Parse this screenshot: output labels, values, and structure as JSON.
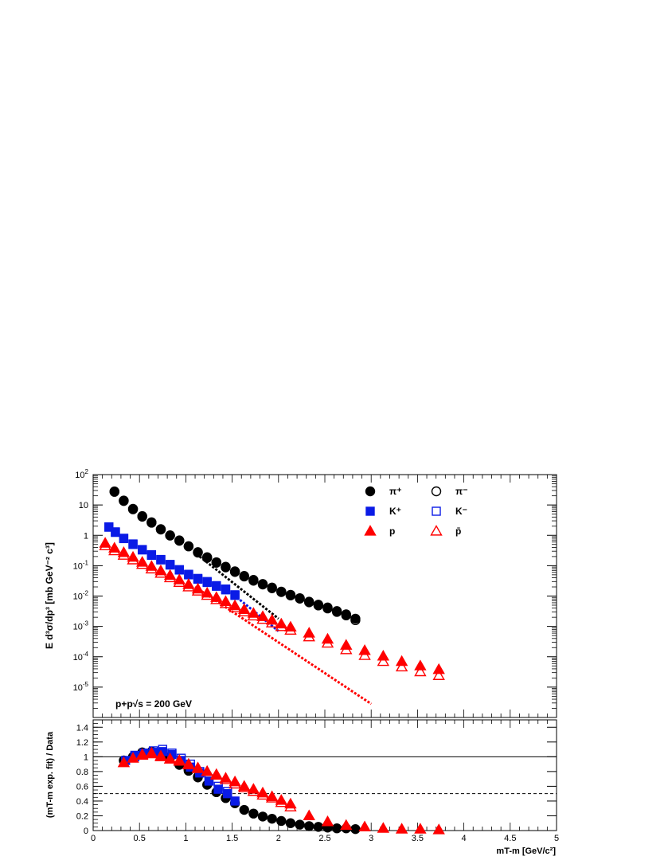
{
  "chart_data": [
    {
      "type": "scatter",
      "x_scale": "linear",
      "y_scale": "log",
      "xlim": [
        0,
        5
      ],
      "ylim": [
        1e-06,
        100
      ],
      "ylabel": "E d³σ/dp³ [mb GeV⁻² c³]",
      "yticks": [
        {
          "v": 100,
          "base": "10",
          "exp": "2"
        },
        {
          "v": 10,
          "base": "10",
          "exp": ""
        },
        {
          "v": 1,
          "base": "1",
          "exp": ""
        },
        {
          "v": 0.1,
          "base": "10",
          "exp": "-1"
        },
        {
          "v": 0.01,
          "base": "10",
          "exp": "-2"
        },
        {
          "v": 0.001,
          "base": "10",
          "exp": "-3"
        },
        {
          "v": 0.0001,
          "base": "10",
          "exp": "-4"
        },
        {
          "v": 1e-05,
          "base": "10",
          "exp": "-5"
        }
      ],
      "annotation": "p+p√s = 200 GeV",
      "legend_position": "top-right",
      "series": [
        {
          "label": "π⁺",
          "marker": "circle",
          "filled": true,
          "color": "#000000",
          "x": [
            0.23,
            0.33,
            0.43,
            0.53,
            0.63,
            0.73,
            0.83,
            0.93,
            1.03,
            1.13,
            1.23,
            1.33,
            1.43,
            1.53,
            1.63,
            1.73,
            1.83,
            1.93,
            2.03,
            2.13,
            2.23,
            2.33,
            2.43,
            2.53,
            2.63,
            2.73,
            2.83
          ],
          "y": [
            28,
            14,
            7.5,
            4.3,
            2.7,
            1.6,
            1.0,
            0.68,
            0.44,
            0.28,
            0.19,
            0.13,
            0.092,
            0.065,
            0.046,
            0.034,
            0.025,
            0.019,
            0.014,
            0.011,
            0.0085,
            0.0065,
            0.0052,
            0.0042,
            0.0032,
            0.0025,
            0.0018
          ]
        },
        {
          "label": "π⁻",
          "marker": "circle",
          "filled": false,
          "color": "#000000",
          "x": [
            0.23,
            0.33,
            0.43,
            0.53,
            0.63,
            0.73,
            0.83,
            0.93,
            1.03,
            1.13,
            1.23,
            1.33,
            1.43,
            1.53,
            1.63,
            1.73,
            1.83,
            1.93,
            2.03,
            2.13,
            2.23,
            2.33,
            2.43,
            2.53,
            2.63,
            2.73,
            2.83
          ],
          "y": [
            27,
            13.5,
            7.2,
            4.1,
            2.6,
            1.55,
            0.98,
            0.66,
            0.43,
            0.27,
            0.18,
            0.125,
            0.088,
            0.062,
            0.044,
            0.032,
            0.024,
            0.018,
            0.0135,
            0.0105,
            0.0082,
            0.0062,
            0.0049,
            0.0039,
            0.003,
            0.0023,
            0.0016
          ]
        },
        {
          "label": "K⁺",
          "marker": "square",
          "filled": true,
          "color": "#0a1be6",
          "x": [
            0.17,
            0.24,
            0.33,
            0.43,
            0.53,
            0.63,
            0.73,
            0.83,
            0.93,
            1.03,
            1.13,
            1.23,
            1.33,
            1.43,
            1.53
          ],
          "y": [
            1.9,
            1.3,
            0.8,
            0.52,
            0.34,
            0.23,
            0.16,
            0.11,
            0.074,
            0.052,
            0.038,
            0.03,
            0.022,
            0.017,
            0.011
          ]
        },
        {
          "label": "K⁻",
          "marker": "square",
          "filled": false,
          "color": "#0a1be6",
          "x": [
            0.17,
            0.24,
            0.33,
            0.43,
            0.53,
            0.63,
            0.73,
            0.83,
            0.93,
            1.03,
            1.13,
            1.23,
            1.33,
            1.43,
            1.53
          ],
          "y": [
            1.85,
            1.25,
            0.78,
            0.5,
            0.33,
            0.22,
            0.155,
            0.105,
            0.072,
            0.05,
            0.036,
            0.028,
            0.021,
            0.016,
            0.0105
          ]
        },
        {
          "label": "p",
          "marker": "triangle",
          "filled": true,
          "color": "#ff0000",
          "x": [
            0.13,
            0.23,
            0.33,
            0.43,
            0.53,
            0.63,
            0.73,
            0.83,
            0.93,
            1.03,
            1.13,
            1.23,
            1.33,
            1.43,
            1.53,
            1.63,
            1.73,
            1.83,
            1.93,
            2.03,
            2.13,
            2.33,
            2.53,
            2.73,
            2.93,
            3.13,
            3.33,
            3.53,
            3.73
          ],
          "y": [
            0.55,
            0.38,
            0.27,
            0.19,
            0.13,
            0.095,
            0.068,
            0.048,
            0.034,
            0.024,
            0.017,
            0.0125,
            0.009,
            0.0066,
            0.0048,
            0.0036,
            0.0027,
            0.0021,
            0.0016,
            0.0012,
            0.00095,
            0.0006,
            0.00038,
            0.00024,
            0.00016,
            0.000105,
            7e-05,
            5e-05,
            3.8e-05
          ]
        },
        {
          "label": "p̄",
          "marker": "triangle",
          "filled": false,
          "color": "#ff0000",
          "x": [
            0.13,
            0.23,
            0.33,
            0.43,
            0.53,
            0.63,
            0.73,
            0.83,
            0.93,
            1.03,
            1.13,
            1.23,
            1.33,
            1.43,
            1.53,
            1.63,
            1.73,
            1.83,
            1.93,
            2.03,
            2.13,
            2.33,
            2.53,
            2.73,
            2.93,
            3.13,
            3.33,
            3.53,
            3.73
          ],
          "y": [
            0.45,
            0.31,
            0.22,
            0.155,
            0.11,
            0.078,
            0.056,
            0.04,
            0.028,
            0.02,
            0.0145,
            0.0105,
            0.0076,
            0.0056,
            0.0041,
            0.003,
            0.0022,
            0.0017,
            0.0013,
            0.00098,
            0.00075,
            0.00045,
            0.00028,
            0.00017,
            0.00011,
            7e-05,
            4.6e-05,
            3.2e-05,
            2.4e-05
          ]
        }
      ],
      "fits": [
        {
          "color": "#000000",
          "x": [
            1.15,
            2.0
          ],
          "y": [
            0.2,
            0.0018
          ]
        },
        {
          "color": "#0a1be6",
          "x": [
            1.45,
            2.0
          ],
          "y": [
            0.016,
            0.0007
          ]
        },
        {
          "color": "#ff0000",
          "x": [
            1.1,
            3.0
          ],
          "y": [
            0.02,
            2.8e-06
          ]
        }
      ]
    },
    {
      "type": "scatter",
      "xlim": [
        0,
        5
      ],
      "ylim": [
        0,
        1.5
      ],
      "xlabel": "mT-m [GeV/c²]",
      "ylabel": "(mT-m exp. fit) / Data",
      "xticks": [
        "0",
        "0.5",
        "1",
        "1.5",
        "2",
        "2.5",
        "3",
        "3.5",
        "4",
        "4.5",
        "5"
      ],
      "yticks": [
        "0",
        "0.2",
        "0.4",
        "0.6",
        "0.8",
        "1",
        "1.2",
        "1.4"
      ],
      "reference_lines": [
        {
          "y": 1.0,
          "style": "solid"
        },
        {
          "y": 0.5,
          "style": "dashed"
        }
      ],
      "series": [
        {
          "label": "π⁺",
          "marker": "circle",
          "filled": true,
          "color": "#000000",
          "x": [
            0.33,
            0.43,
            0.53,
            0.63,
            0.73,
            0.83,
            0.93,
            1.03,
            1.13,
            1.23,
            1.33,
            1.43,
            1.53,
            1.63,
            1.73,
            1.83,
            1.93,
            2.03,
            2.13,
            2.23,
            2.33,
            2.43,
            2.53,
            2.63,
            2.73,
            2.83
          ],
          "y": [
            0.95,
            1.0,
            1.06,
            1.07,
            1.05,
            1.0,
            0.9,
            0.82,
            0.73,
            0.62,
            0.52,
            0.44,
            0.37,
            0.28,
            0.23,
            0.19,
            0.16,
            0.13,
            0.1,
            0.08,
            0.06,
            0.05,
            0.04,
            0.03,
            0.03,
            0.02
          ]
        },
        {
          "label": "π⁻",
          "marker": "circle",
          "filled": false,
          "color": "#000000",
          "x": [
            0.43,
            0.53,
            0.63,
            0.73,
            0.83,
            0.93,
            1.03,
            1.13
          ],
          "y": [
            1.0,
            1.05,
            1.06,
            1.04,
            0.99,
            0.89,
            0.81,
            0.72
          ]
        },
        {
          "label": "K⁺",
          "marker": "square",
          "filled": true,
          "color": "#0a1be6",
          "x": [
            0.35,
            0.45,
            0.55,
            0.65,
            0.75,
            0.85,
            0.95,
            1.05,
            1.15,
            1.25,
            1.35,
            1.45,
            1.53
          ],
          "y": [
            0.95,
            1.02,
            1.05,
            1.06,
            1.07,
            1.03,
            0.95,
            0.86,
            0.78,
            0.67,
            0.56,
            0.5,
            0.4
          ]
        },
        {
          "label": "K⁻",
          "marker": "square",
          "filled": false,
          "color": "#0a1be6",
          "x": [
            0.45,
            0.55,
            0.65,
            0.75,
            0.85,
            0.95,
            1.05,
            1.15,
            1.25,
            1.35,
            1.45
          ],
          "y": [
            1.0,
            1.05,
            1.08,
            1.1,
            1.05,
            0.98,
            0.9,
            0.8,
            0.7,
            0.6,
            0.53
          ]
        },
        {
          "label": "p",
          "marker": "triangle",
          "filled": true,
          "color": "#ff0000",
          "x": [
            0.33,
            0.43,
            0.53,
            0.63,
            0.73,
            0.83,
            0.93,
            1.03,
            1.13,
            1.23,
            1.33,
            1.43,
            1.53,
            1.63,
            1.73,
            1.83,
            1.93,
            2.03,
            2.13,
            2.33,
            2.53,
            2.73,
            2.93,
            3.13,
            3.33,
            3.53,
            3.73
          ],
          "y": [
            0.92,
            0.98,
            1.02,
            1.04,
            1.01,
            0.97,
            0.94,
            0.89,
            0.84,
            0.8,
            0.76,
            0.71,
            0.66,
            0.6,
            0.56,
            0.51,
            0.46,
            0.41,
            0.36,
            0.2,
            0.12,
            0.07,
            0.05,
            0.03,
            0.02,
            0.02,
            0.01
          ]
        },
        {
          "label": "p̄",
          "marker": "triangle",
          "filled": false,
          "color": "#ff0000",
          "x": [
            0.53,
            0.63,
            0.73,
            0.83,
            0.93,
            1.03,
            1.13,
            1.23,
            1.33,
            1.43,
            1.53,
            1.63,
            1.73,
            1.83,
            1.93,
            2.03,
            2.13
          ],
          "y": [
            1.03,
            1.05,
            1.0,
            0.97,
            0.95,
            0.9,
            0.85,
            0.8,
            0.75,
            0.69,
            0.63,
            0.58,
            0.53,
            0.48,
            0.44,
            0.38,
            0.32
          ]
        }
      ]
    }
  ]
}
